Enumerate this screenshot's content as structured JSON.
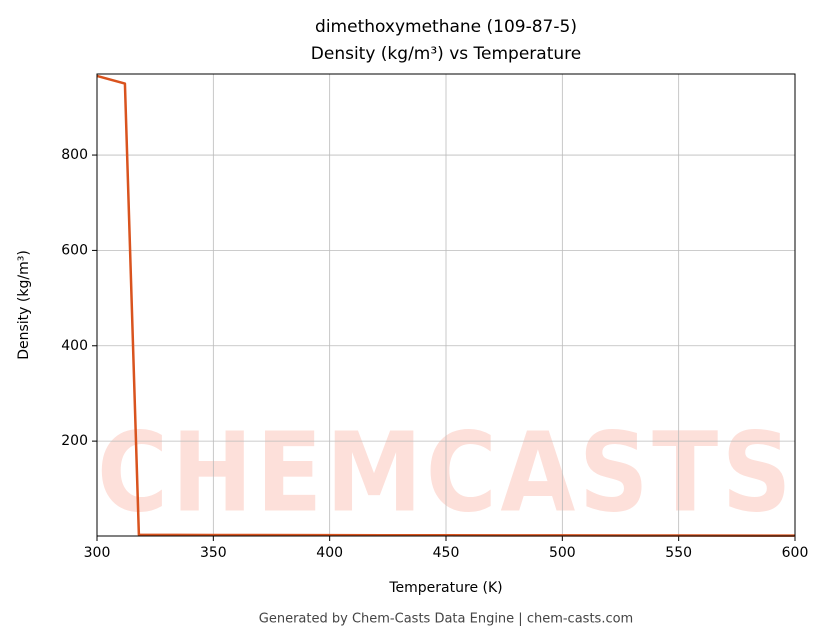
{
  "chart_data": {
    "type": "line",
    "title": "dimethoxymethane (109-87-5)",
    "subtitle": "Density (kg/m³) vs Temperature",
    "x_label": "Temperature (K)",
    "y_label": "Density (kg/m³)",
    "footer": "Generated by Chem-Casts Data Engine | chem-casts.com",
    "watermark": "CHEMCASTS",
    "x": [
      300,
      312,
      318,
      350,
      400,
      450,
      500,
      550,
      600
    ],
    "series": [
      {
        "name": "Density",
        "color": "#d9531e",
        "values": [
          966,
          950,
          3.5,
          3.2,
          2.8,
          2.5,
          2.2,
          2.0,
          1.8
        ]
      }
    ],
    "xlim": [
      300,
      600
    ],
    "ylim": [
      1,
      970
    ],
    "xticks": [
      300,
      350,
      400,
      450,
      500,
      550,
      600
    ],
    "yticks": [
      200,
      400,
      600,
      800
    ],
    "grid": true
  }
}
